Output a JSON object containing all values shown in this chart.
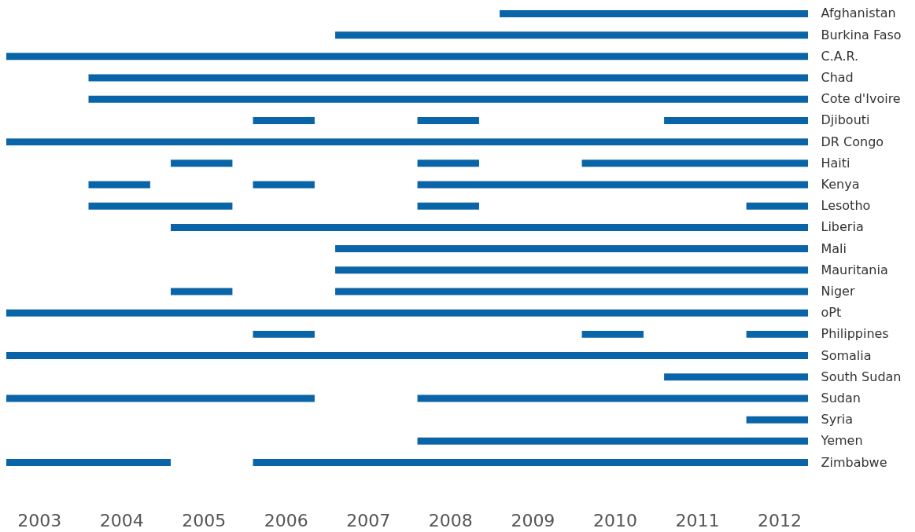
{
  "chart_data": {
    "type": "bar",
    "orientation": "horizontal",
    "categories": [
      "Afghanistan",
      "Burkina Faso",
      "C.A.R.",
      "Chad",
      "Cote d'Ivoire",
      "Djibouti",
      "DR Congo",
      "Haiti",
      "Kenya",
      "Lesotho",
      "Liberia",
      "Mali",
      "Mauritania",
      "Niger",
      "oPt",
      "Philippines",
      "Somalia",
      "South Sudan",
      "Sudan",
      "Syria",
      "Yemen",
      "Zimbabwe"
    ],
    "xlim": [
      2003,
      2012.75
    ],
    "xticks": [
      {
        "value": 2003.4,
        "label": "2003"
      },
      {
        "value": 2004.4,
        "label": "2004"
      },
      {
        "value": 2005.4,
        "label": "2005"
      },
      {
        "value": 2006.4,
        "label": "2006"
      },
      {
        "value": 2007.4,
        "label": "2007"
      },
      {
        "value": 2008.4,
        "label": "2008"
      },
      {
        "value": 2009.4,
        "label": "2009"
      },
      {
        "value": 2010.4,
        "label": "2010"
      },
      {
        "value": 2011.4,
        "label": "2011"
      },
      {
        "value": 2012.4,
        "label": "2012"
      }
    ],
    "grid": false,
    "series": [
      {
        "color": "#0a64a8",
        "base": [
          2009,
          2007,
          2003,
          2004,
          2004,
          2006,
          2003,
          2005,
          2004,
          2004,
          2005,
          2007,
          2007,
          2005,
          2003,
          2006,
          2003,
          2011,
          2003,
          2012,
          2008,
          2003
        ],
        "values": [
          3.75,
          5.75,
          9.75,
          8.75,
          8.75,
          0.75,
          9.75,
          0.75,
          0.75,
          1.75,
          7.75,
          5.75,
          5.75,
          0.75,
          9.75,
          0.75,
          9.75,
          1.75,
          3.75,
          0.75,
          4.75,
          2
        ]
      },
      {
        "color": "#0a64a8",
        "base": [
          null,
          null,
          null,
          null,
          null,
          2008,
          null,
          2008,
          2006,
          2008,
          null,
          null,
          null,
          2007,
          null,
          2010,
          null,
          null,
          2008,
          null,
          null,
          2006
        ],
        "values": [
          null,
          null,
          null,
          null,
          null,
          0.75,
          null,
          0.75,
          0.75,
          0.75,
          null,
          null,
          null,
          5.75,
          null,
          0.75,
          null,
          null,
          4.75,
          null,
          null,
          6.75
        ]
      },
      {
        "color": "#0a64a8",
        "base": [
          null,
          null,
          null,
          null,
          null,
          2011,
          null,
          2010,
          2008,
          2012,
          null,
          null,
          null,
          null,
          null,
          2012,
          null,
          null,
          null,
          null,
          null,
          null
        ],
        "values": [
          null,
          null,
          null,
          null,
          null,
          1.75,
          null,
          2.75,
          4.75,
          0.75,
          null,
          null,
          null,
          null,
          null,
          0.75,
          null,
          null,
          null,
          null,
          null,
          null
        ]
      }
    ]
  }
}
